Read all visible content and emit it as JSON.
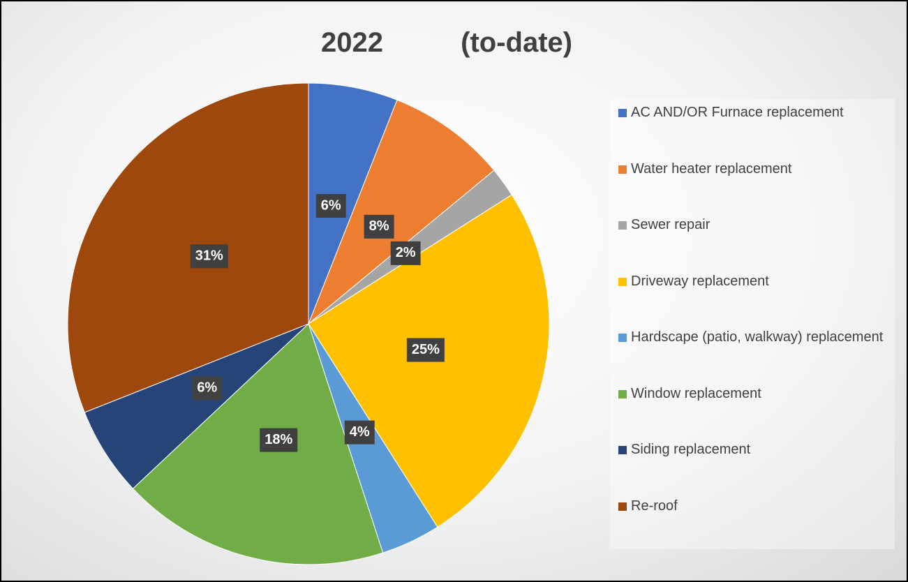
{
  "chart_data": {
    "type": "pie",
    "title": "2022          (to-date)",
    "categories": [
      "AC AND/OR Furnace replacement",
      "Water heater replacement",
      "Sewer repair",
      "Driveway replacement",
      "Hardscape (patio, walkway) replacement",
      "Window replacement",
      "Siding replacement",
      "Re-roof"
    ],
    "values": [
      6,
      8,
      2,
      25,
      4,
      18,
      6,
      31
    ],
    "value_labels": [
      "6%",
      "8%",
      "2%",
      "25%",
      "4%",
      "18%",
      "6%",
      "31%"
    ],
    "colors": [
      "#4472c4",
      "#ed7d31",
      "#a5a5a5",
      "#ffc000",
      "#5b9bd5",
      "#70ad47",
      "#264478",
      "#9e480e"
    ],
    "legend": "right"
  }
}
